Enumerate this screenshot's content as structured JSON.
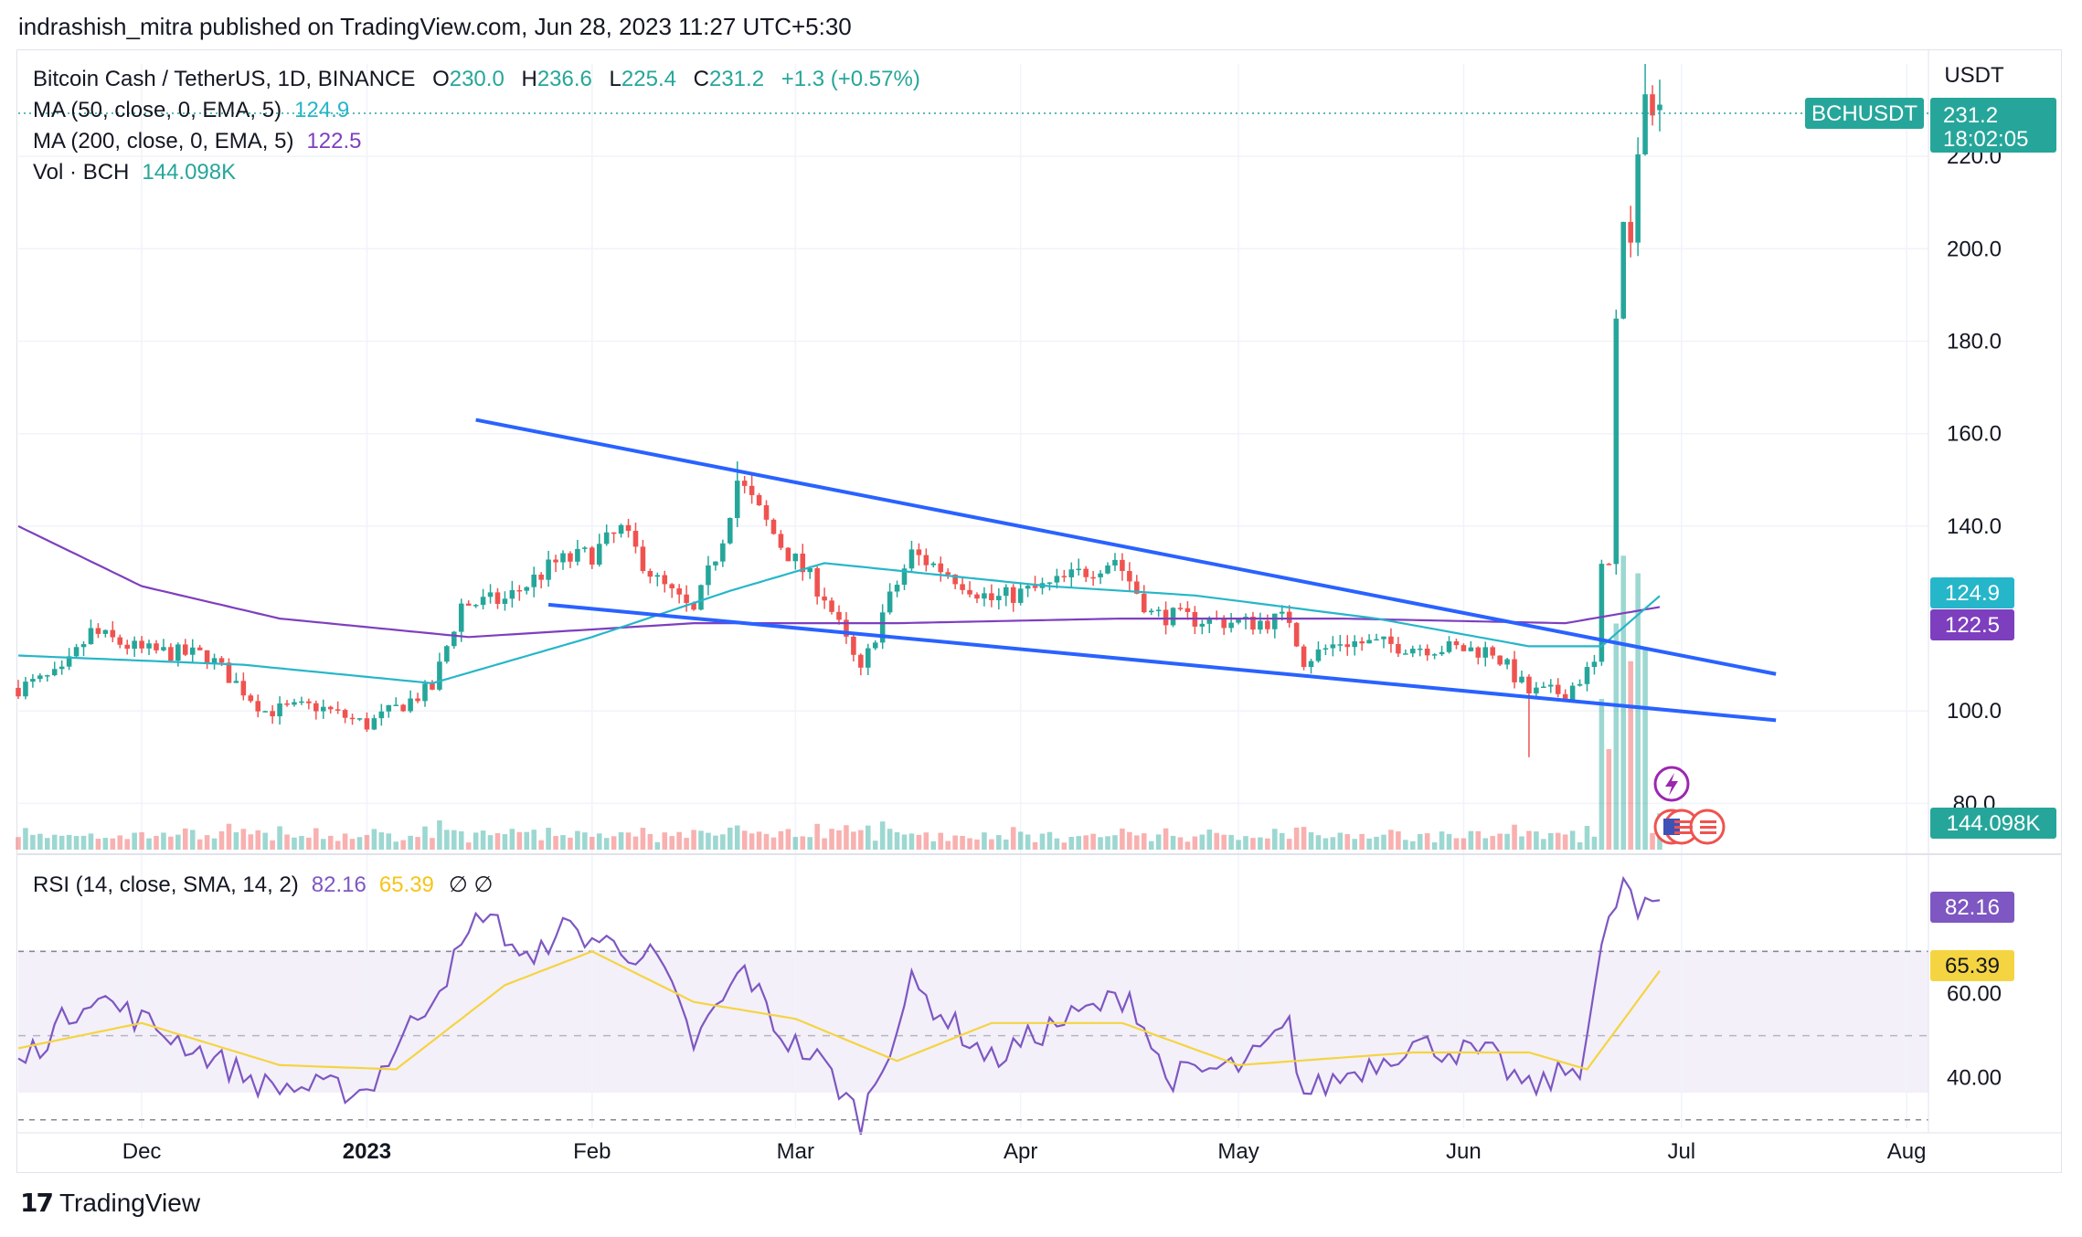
{
  "header": {
    "publisher_line": "indrashish_mitra published on TradingView.com, Jun 28, 2023 11:27 UTC+5:30"
  },
  "legend": {
    "symbol": "Bitcoin Cash / TetherUS, 1D, BINANCE",
    "open_label": "O",
    "open": "230.0",
    "high_label": "H",
    "high": "236.6",
    "low_label": "L",
    "low": "225.4",
    "close_label": "C",
    "close": "231.2",
    "change": "+1.3 (+0.57%)",
    "ma50_label": "MA (50, close, 0, EMA, 5)",
    "ma50_value": "124.9",
    "ma200_label": "MA (200, close, 0, EMA, 5)",
    "ma200_value": "122.5",
    "vol_label": "Vol · BCH",
    "vol_value": "144.098K",
    "rsi_label": "RSI (14, close, SMA, 14, 2)",
    "rsi_value": "82.16",
    "rsi_sma_value": "65.39",
    "rsi_extra": "∅  ∅"
  },
  "price_axis": {
    "currency": "USDT",
    "ticks": [
      "220.0",
      "200.0",
      "180.0",
      "160.0",
      "140.0",
      "100.0",
      "80.0"
    ]
  },
  "rsi_axis": {
    "ticks": [
      "60.00",
      "40.00"
    ]
  },
  "time_axis": {
    "labels": [
      "Dec",
      "2023",
      "Feb",
      "Mar",
      "Apr",
      "May",
      "Jun",
      "Jul",
      "Aug"
    ]
  },
  "badges": {
    "symbol_tag": "BCHUSDT",
    "last_price": "231.2",
    "countdown": "18:02:05",
    "ma50": "124.9",
    "ma200": "122.5",
    "volume": "144.098K",
    "rsi": "82.16",
    "rsi_sma": "65.39"
  },
  "footer": {
    "brand": "TradingView"
  },
  "colors": {
    "up": "#26a69a",
    "down": "#ef5350",
    "ma50": "#26b6c9",
    "ma200": "#7e3fbf",
    "trendline": "#2962ff",
    "rsi": "#7e57c2",
    "rsi_sma": "#f5d442",
    "rsi_band": "#7e57c2"
  },
  "chart_data": {
    "type": "candlestick",
    "title": "Bitcoin Cash / TetherUS, 1D, BINANCE",
    "ylabel": "USDT",
    "ylim": [
      70,
      240
    ],
    "x_range": [
      "2022-11-14",
      "2023-08-04"
    ],
    "anchors": [
      {
        "date": "2022-11-14",
        "close": 105
      },
      {
        "date": "2022-11-20",
        "close": 108
      },
      {
        "date": "2022-11-24",
        "close": 117
      },
      {
        "date": "2022-12-01",
        "close": 113
      },
      {
        "date": "2022-12-10",
        "close": 112
      },
      {
        "date": "2022-12-18",
        "close": 100
      },
      {
        "date": "2022-12-25",
        "close": 101
      },
      {
        "date": "2023-01-01",
        "close": 97
      },
      {
        "date": "2023-01-10",
        "close": 105
      },
      {
        "date": "2023-01-14",
        "close": 123
      },
      {
        "date": "2023-01-20",
        "close": 124
      },
      {
        "date": "2023-01-27",
        "close": 132
      },
      {
        "date": "2023-02-01",
        "close": 134
      },
      {
        "date": "2023-02-05",
        "close": 139
      },
      {
        "date": "2023-02-10",
        "close": 128
      },
      {
        "date": "2023-02-15",
        "close": 121
      },
      {
        "date": "2023-02-19",
        "close": 138
      },
      {
        "date": "2023-02-21",
        "close": 150
      },
      {
        "date": "2023-02-27",
        "close": 136
      },
      {
        "date": "2023-03-05",
        "close": 125
      },
      {
        "date": "2023-03-10",
        "close": 108
      },
      {
        "date": "2023-03-13",
        "close": 121
      },
      {
        "date": "2023-03-17",
        "close": 134
      },
      {
        "date": "2023-03-22",
        "close": 130
      },
      {
        "date": "2023-03-28",
        "close": 124
      },
      {
        "date": "2023-04-05",
        "close": 127
      },
      {
        "date": "2023-04-14",
        "close": 133
      },
      {
        "date": "2023-04-19",
        "close": 121
      },
      {
        "date": "2023-04-24",
        "close": 120
      },
      {
        "date": "2023-05-02",
        "close": 119
      },
      {
        "date": "2023-05-08",
        "close": 120
      },
      {
        "date": "2023-05-10",
        "close": 111
      },
      {
        "date": "2023-05-15",
        "close": 115
      },
      {
        "date": "2023-05-25",
        "close": 114
      },
      {
        "date": "2023-06-05",
        "close": 113
      },
      {
        "date": "2023-06-10",
        "close": 104
      },
      {
        "date": "2023-06-15",
        "close": 104
      },
      {
        "date": "2023-06-19",
        "close": 110
      },
      {
        "date": "2023-06-20",
        "close": 130
      },
      {
        "date": "2023-06-21",
        "close": 134
      },
      {
        "date": "2023-06-22",
        "close": 188
      },
      {
        "date": "2023-06-23",
        "close": 208
      },
      {
        "date": "2023-06-24",
        "close": 200
      },
      {
        "date": "2023-06-25",
        "close": 218
      },
      {
        "date": "2023-06-26",
        "close": 233
      },
      {
        "date": "2023-06-27",
        "close": 230
      },
      {
        "date": "2023-06-28",
        "close": 231.2
      }
    ],
    "notable_wicks": [
      {
        "date": "2023-02-21",
        "high": 154
      },
      {
        "date": "2023-06-10",
        "low": 90
      },
      {
        "date": "2023-06-26",
        "high": 240
      }
    ],
    "ma50_anchors": [
      {
        "date": "2022-11-14",
        "value": 112
      },
      {
        "date": "2022-12-15",
        "value": 110
      },
      {
        "date": "2023-01-10",
        "value": 106
      },
      {
        "date": "2023-02-01",
        "value": 116
      },
      {
        "date": "2023-02-20",
        "value": 126
      },
      {
        "date": "2023-03-05",
        "value": 132
      },
      {
        "date": "2023-04-05",
        "value": 127
      },
      {
        "date": "2023-04-25",
        "value": 125
      },
      {
        "date": "2023-05-20",
        "value": 120
      },
      {
        "date": "2023-06-10",
        "value": 114
      },
      {
        "date": "2023-06-20",
        "value": 114
      },
      {
        "date": "2023-06-28",
        "value": 124.9
      }
    ],
    "ma200_anchors": [
      {
        "date": "2022-11-14",
        "value": 140
      },
      {
        "date": "2022-12-01",
        "value": 127
      },
      {
        "date": "2022-12-20",
        "value": 120
      },
      {
        "date": "2023-01-15",
        "value": 116
      },
      {
        "date": "2023-02-15",
        "value": 119
      },
      {
        "date": "2023-03-15",
        "value": 119
      },
      {
        "date": "2023-04-15",
        "value": 120
      },
      {
        "date": "2023-05-15",
        "value": 120
      },
      {
        "date": "2023-06-15",
        "value": 119
      },
      {
        "date": "2023-06-28",
        "value": 122.5
      }
    ],
    "trendlines": [
      {
        "from": {
          "date": "2023-01-16",
          "value": 163
        },
        "to": {
          "date": "2023-07-14",
          "value": 108
        }
      },
      {
        "from": {
          "date": "2023-01-26",
          "value": 123
        },
        "to": {
          "date": "2023-07-14",
          "value": 98
        }
      }
    ],
    "volume_ylim": [
      0,
      1200
    ],
    "volume_spikes_k": [
      {
        "date": "2023-06-20",
        "value": 600
      },
      {
        "date": "2023-06-21",
        "value": 400
      },
      {
        "date": "2023-06-22",
        "value": 900
      },
      {
        "date": "2023-06-23",
        "value": 1170
      },
      {
        "date": "2023-06-24",
        "value": 750
      },
      {
        "date": "2023-06-25",
        "value": 1100
      },
      {
        "date": "2023-06-26",
        "value": 800
      },
      {
        "date": "2023-06-28",
        "value": 144.098
      }
    ],
    "rsi": {
      "ylim": [
        28,
        92
      ],
      "bands": [
        30,
        50,
        70
      ],
      "anchors": [
        {
          "date": "2022-11-14",
          "value": 43
        },
        {
          "date": "2022-11-24",
          "value": 60
        },
        {
          "date": "2022-12-05",
          "value": 50
        },
        {
          "date": "2022-12-18",
          "value": 38
        },
        {
          "date": "2023-01-01",
          "value": 37
        },
        {
          "date": "2023-01-14",
          "value": 70
        },
        {
          "date": "2023-01-17",
          "value": 80
        },
        {
          "date": "2023-01-24",
          "value": 66
        },
        {
          "date": "2023-01-27",
          "value": 76
        },
        {
          "date": "2023-02-10",
          "value": 68
        },
        {
          "date": "2023-02-15",
          "value": 48
        },
        {
          "date": "2023-02-22",
          "value": 66
        },
        {
          "date": "2023-02-27",
          "value": 50
        },
        {
          "date": "2023-03-05",
          "value": 43
        },
        {
          "date": "2023-03-10",
          "value": 30
        },
        {
          "date": "2023-03-17",
          "value": 62
        },
        {
          "date": "2023-03-28",
          "value": 44
        },
        {
          "date": "2023-04-05",
          "value": 52
        },
        {
          "date": "2023-04-16",
          "value": 60
        },
        {
          "date": "2023-04-21",
          "value": 40
        },
        {
          "date": "2023-05-02",
          "value": 43
        },
        {
          "date": "2023-05-08",
          "value": 52
        },
        {
          "date": "2023-05-10",
          "value": 36
        },
        {
          "date": "2023-05-25",
          "value": 48
        },
        {
          "date": "2023-06-05",
          "value": 45
        },
        {
          "date": "2023-06-10",
          "value": 37
        },
        {
          "date": "2023-06-17",
          "value": 43
        },
        {
          "date": "2023-06-20",
          "value": 70
        },
        {
          "date": "2023-06-23",
          "value": 87
        },
        {
          "date": "2023-06-25",
          "value": 78
        },
        {
          "date": "2023-06-28",
          "value": 82.16
        }
      ],
      "sma_anchors": [
        {
          "date": "2022-11-14",
          "value": 47
        },
        {
          "date": "2022-12-01",
          "value": 53
        },
        {
          "date": "2022-12-20",
          "value": 43
        },
        {
          "date": "2023-01-05",
          "value": 42
        },
        {
          "date": "2023-01-20",
          "value": 62
        },
        {
          "date": "2023-02-01",
          "value": 70
        },
        {
          "date": "2023-02-15",
          "value": 58
        },
        {
          "date": "2023-03-01",
          "value": 54
        },
        {
          "date": "2023-03-15",
          "value": 44
        },
        {
          "date": "2023-03-28",
          "value": 53
        },
        {
          "date": "2023-04-15",
          "value": 53
        },
        {
          "date": "2023-05-01",
          "value": 43
        },
        {
          "date": "2023-05-25",
          "value": 46
        },
        {
          "date": "2023-06-10",
          "value": 46
        },
        {
          "date": "2023-06-18",
          "value": 42
        },
        {
          "date": "2023-06-28",
          "value": 65.39
        }
      ]
    }
  }
}
